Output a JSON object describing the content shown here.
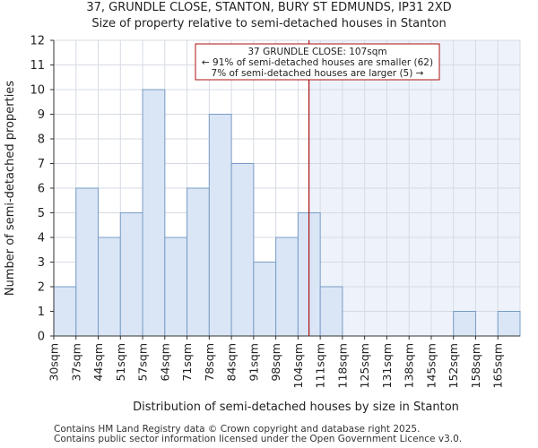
{
  "page": {
    "title_line1": "37, GRUNDLE CLOSE, STANTON, BURY ST EDMUNDS, IP31 2XD",
    "title_line2": "Size of property relative to semi-detached houses in Stanton",
    "footer_line1": "Contains HM Land Registry data © Crown copyright and database right 2025.",
    "footer_line2": "Contains public sector information licensed under the Open Government Licence v3.0."
  },
  "chart_data": {
    "type": "bar",
    "title": "Size of property relative to semi-detached houses in Stanton",
    "xlabel": "Distribution of semi-detached houses by size in Stanton",
    "ylabel": "Number of semi-detached properties",
    "categories": [
      "30sqm",
      "37sqm",
      "44sqm",
      "51sqm",
      "57sqm",
      "64sqm",
      "71sqm",
      "78sqm",
      "84sqm",
      "91sqm",
      "98sqm",
      "104sqm",
      "111sqm",
      "118sqm",
      "125sqm",
      "131sqm",
      "138sqm",
      "145sqm",
      "152sqm",
      "158sqm",
      "165sqm"
    ],
    "values": [
      2,
      6,
      4,
      5,
      10,
      4,
      6,
      9,
      7,
      3,
      4,
      5,
      2,
      0,
      0,
      0,
      0,
      0,
      1,
      0,
      1
    ],
    "ylim": [
      0,
      12
    ],
    "yticks": [
      0,
      1,
      2,
      3,
      4,
      5,
      6,
      7,
      8,
      9,
      10,
      11,
      12
    ],
    "grid": true,
    "marker": {
      "value_sqm": 107,
      "label_line1": "37 GRUNDLE CLOSE: 107sqm",
      "label_line2": "← 91% of semi-detached houses are smaller (62)",
      "label_line3": "7% of semi-detached houses are larger (5) →"
    },
    "colors": {
      "bar_fill": "#dae6f6",
      "bar_edge": "#7a9cc6",
      "highlight_bg": "#eef3fb",
      "marker_line": "#aa1111",
      "grid": "#d6dbe3"
    }
  }
}
